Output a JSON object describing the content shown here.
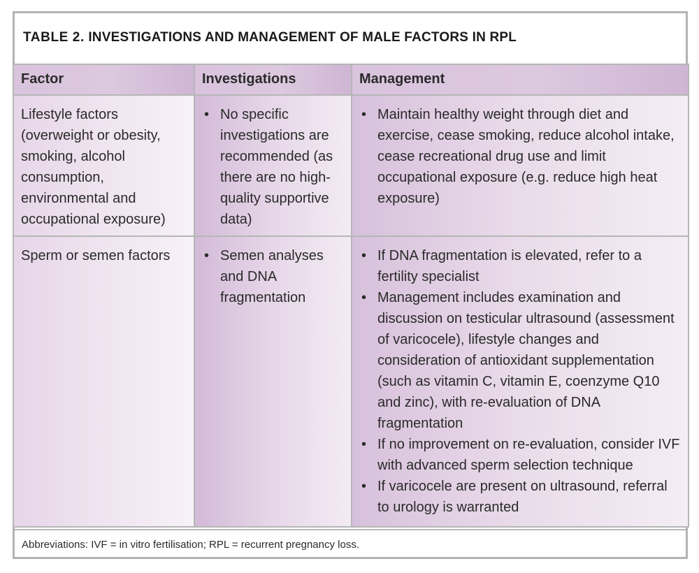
{
  "table": {
    "title_lead": "TABLE 2.",
    "title_rest": " INVESTIGATIONS AND MANAGEMENT OF MALE FACTORS IN RPL",
    "headers": [
      "Factor",
      "Investigations",
      "Management"
    ],
    "rows": [
      {
        "factor": "Lifestyle factors (overweight or obesity, smoking, alcohol consumption, environmental and occupational exposure)",
        "investigations": [
          "No specific investigations are recommended (as there are no high-quality supportive data)"
        ],
        "management": [
          "Maintain healthy weight through diet and exercise, cease smoking, reduce alcohol intake, cease recreational drug use and limit occupational exposure (e.g. reduce high heat exposure)"
        ]
      },
      {
        "factor": "Sperm or semen factors",
        "investigations": [
          "Semen analyses and DNA fragmentation"
        ],
        "management": [
          "If DNA fragmentation is elevated, refer to a fertility specialist",
          "Management includes examination and discussion on testicular ultrasound (assessment of varicocele), lifestyle changes and consideration of antioxidant supplementation (such as vitamin C, vitamin E, coenzyme Q10 and zinc), with re-evaluation of DNA fragmentation",
          "If no improvement on re-evaluation, consider IVF with advanced sperm selection technique",
          "If varicocele are present on ultrasound, referral to urology is warranted"
        ]
      }
    ],
    "abbreviations": "Abbreviations: IVF = in vitro fertilisation; RPL = recurrent pregnancy loss."
  }
}
